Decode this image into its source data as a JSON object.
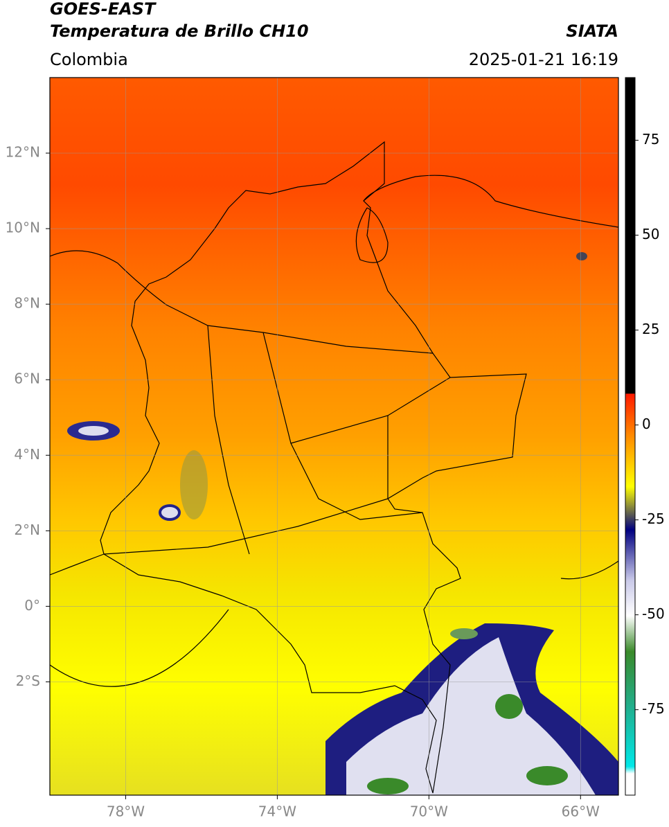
{
  "header": {
    "title_line1": "GOES-EAST",
    "title_line2": "Temperatura de Brillo CH10",
    "source": "SIATA",
    "region": "Colombia",
    "timestamp": "2025-01-21 16:19"
  },
  "map": {
    "lon_range": [
      -80,
      -65
    ],
    "lat_range": [
      -5,
      14
    ],
    "lon_ticks": [
      {
        "value": -78,
        "label": "78°W"
      },
      {
        "value": -74,
        "label": "74°W"
      },
      {
        "value": -70,
        "label": "70°W"
      },
      {
        "value": -66,
        "label": "66°W"
      }
    ],
    "lat_ticks": [
      {
        "value": 12,
        "label": "12°N"
      },
      {
        "value": 10,
        "label": "10°N"
      },
      {
        "value": 8,
        "label": "8°N"
      },
      {
        "value": 6,
        "label": "6°N"
      },
      {
        "value": 4,
        "label": "4°N"
      },
      {
        "value": 2,
        "label": "2°N"
      },
      {
        "value": 0,
        "label": "0°"
      },
      {
        "value": -2,
        "label": "2°S"
      }
    ]
  },
  "colorbar": {
    "range": [
      -97.5,
      91.5
    ],
    "ticks": [
      75,
      50,
      25,
      0,
      -25,
      -50,
      -75
    ]
  }
}
